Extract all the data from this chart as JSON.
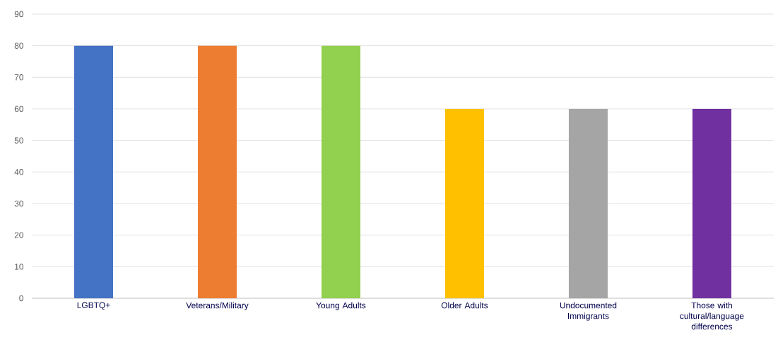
{
  "chart_data": {
    "type": "bar",
    "categories": [
      "LGBTQ+",
      "Veterans/Military",
      "Young Adults",
      "Older Adults",
      "Undocumented Immigrants",
      "Those with cultural/language differences"
    ],
    "values": [
      80,
      80,
      80,
      60,
      60,
      60
    ],
    "colors": [
      "#4472c4",
      "#ed7d31",
      "#92d050",
      "#ffc000",
      "#a5a5a5",
      "#7030a0"
    ],
    "ylim": [
      0,
      90
    ],
    "yticks": [
      0,
      10,
      20,
      30,
      40,
      50,
      60,
      70,
      80,
      90
    ],
    "grid": "y"
  }
}
